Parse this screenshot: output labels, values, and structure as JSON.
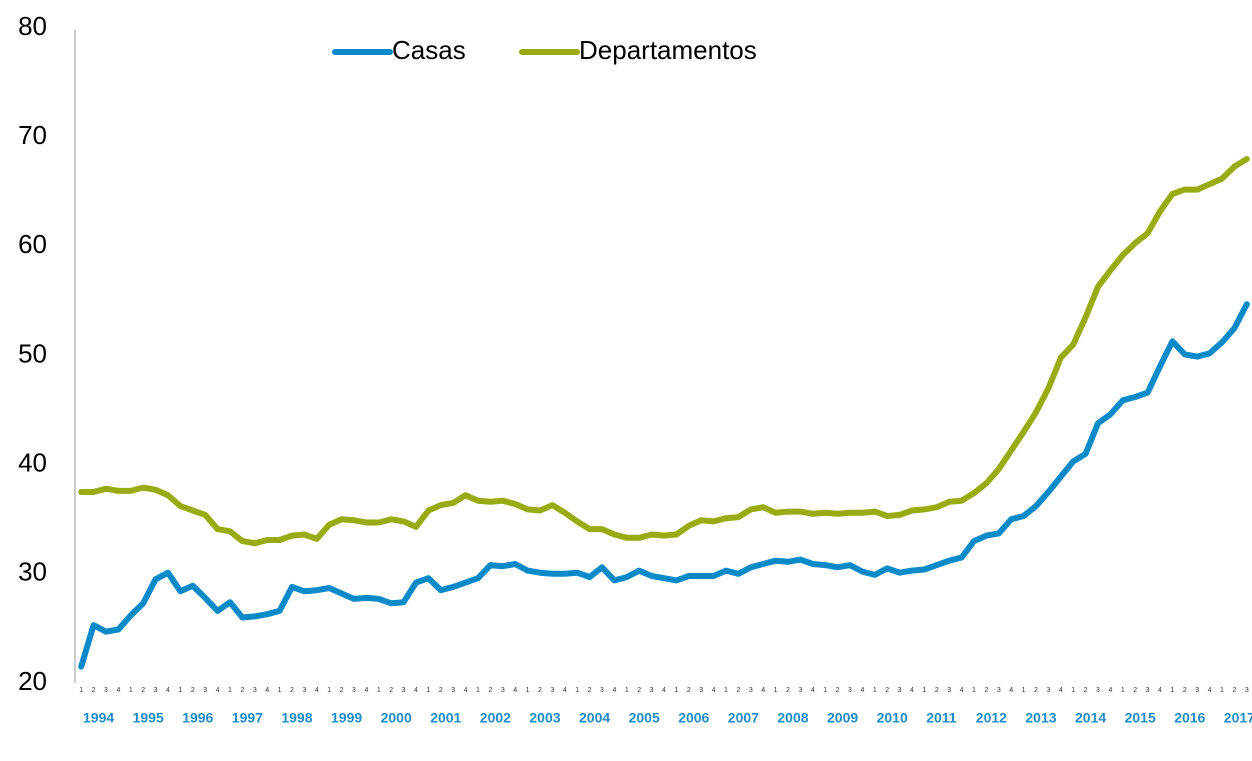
{
  "chart_data": {
    "type": "line",
    "categories": [
      "1",
      "2",
      "3",
      "4",
      "1",
      "2",
      "3",
      "4",
      "1",
      "2",
      "3",
      "4",
      "1",
      "2",
      "3",
      "4",
      "1",
      "2",
      "3",
      "4",
      "1",
      "2",
      "3",
      "4",
      "1",
      "2",
      "3",
      "4",
      "1",
      "2",
      "3",
      "4",
      "1",
      "2",
      "3",
      "4",
      "1",
      "2",
      "3",
      "4",
      "1",
      "2",
      "3",
      "4",
      "1",
      "2",
      "3",
      "4",
      "1",
      "2",
      "3",
      "4",
      "1",
      "2",
      "3",
      "4",
      "1",
      "2",
      "3",
      "4",
      "1",
      "2",
      "3",
      "4",
      "1",
      "2",
      "3",
      "4",
      "1",
      "2",
      "3",
      "4",
      "1",
      "2",
      "3",
      "4",
      "1",
      "2",
      "3",
      "4",
      "1",
      "2",
      "3",
      "4",
      "1",
      "2",
      "3",
      "4",
      "1",
      "2",
      "3",
      "4",
      "1",
      "2",
      "3"
    ],
    "years": [
      "1994",
      "1995",
      "1996",
      "1997",
      "1998",
      "1999",
      "2000",
      "2001",
      "2002",
      "2003",
      "2004",
      "2005",
      "2006",
      "2007",
      "2008",
      "2009",
      "2010",
      "2011",
      "2012",
      "2013",
      "2014",
      "2015",
      "2016",
      "2017"
    ],
    "series": [
      {
        "name": "Casas",
        "color": "#0a8ac8",
        "values": [
          21.5,
          25.3,
          24.7,
          24.9,
          26.2,
          27.3,
          29.5,
          30.1,
          28.4,
          28.9,
          27.8,
          26.6,
          27.4,
          26.0,
          26.1,
          26.3,
          26.6,
          28.8,
          28.4,
          28.5,
          28.7,
          28.2,
          27.7,
          27.8,
          27.7,
          27.3,
          27.4,
          29.2,
          29.6,
          28.5,
          28.8,
          29.2,
          29.6,
          30.8,
          30.7,
          30.9,
          30.3,
          30.1,
          30.0,
          30.0,
          30.1,
          29.7,
          30.6,
          29.4,
          29.7,
          30.3,
          29.8,
          29.6,
          29.4,
          29.8,
          29.8,
          29.8,
          30.3,
          30.0,
          30.6,
          30.9,
          31.2,
          31.1,
          31.3,
          30.9,
          30.8,
          30.6,
          30.8,
          30.2,
          29.9,
          30.5,
          30.1,
          30.3,
          30.4,
          30.8,
          31.2,
          31.5,
          33.0,
          33.5,
          33.7,
          35.0,
          35.3,
          36.2,
          37.5,
          38.9,
          40.3,
          41.0,
          43.8,
          44.6,
          45.9,
          46.2,
          46.6,
          49.0,
          51.3,
          50.1,
          49.9,
          50.2,
          51.2,
          52.5,
          54.7
        ]
      },
      {
        "name": "Departamentos",
        "color": "#9aaa12",
        "values": [
          37.5,
          37.5,
          37.8,
          37.6,
          37.6,
          37.9,
          37.7,
          37.2,
          36.2,
          35.8,
          35.4,
          34.1,
          33.9,
          33.0,
          32.8,
          33.1,
          33.1,
          33.5,
          33.6,
          33.2,
          34.5,
          35.0,
          34.9,
          34.7,
          34.7,
          35.0,
          34.8,
          34.3,
          35.8,
          36.3,
          36.5,
          37.2,
          36.7,
          36.6,
          36.7,
          36.4,
          35.9,
          35.8,
          36.3,
          35.6,
          34.8,
          34.1,
          34.1,
          33.6,
          33.3,
          33.3,
          33.6,
          33.5,
          33.6,
          34.4,
          34.9,
          34.8,
          35.1,
          35.2,
          35.9,
          36.1,
          35.6,
          35.7,
          35.7,
          35.5,
          35.6,
          35.5,
          35.6,
          35.6,
          35.7,
          35.3,
          35.4,
          35.8,
          35.9,
          36.1,
          36.6,
          36.7,
          37.4,
          38.3,
          39.6,
          41.3,
          43.0,
          44.8,
          47.0,
          49.8,
          51.0,
          53.5,
          56.3,
          57.8,
          59.2,
          60.3,
          61.2,
          63.2,
          64.8,
          65.2,
          65.2,
          65.7,
          66.2,
          67.3,
          68.0
        ]
      }
    ],
    "ylim": [
      20,
      80
    ],
    "yticks": [
      20,
      30,
      40,
      50,
      60,
      70,
      80
    ],
    "grid": false,
    "legend": "top"
  }
}
